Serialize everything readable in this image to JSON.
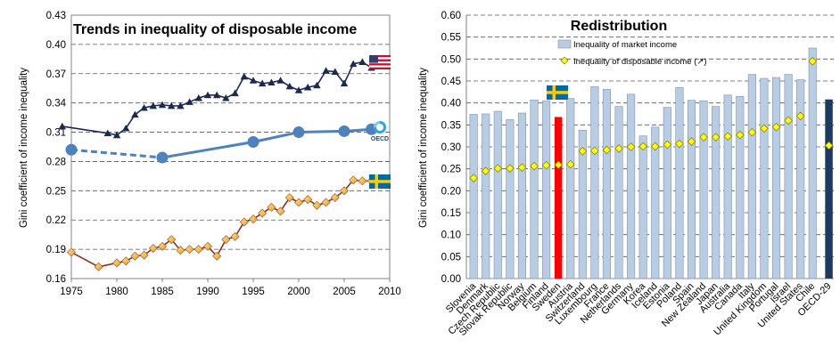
{
  "chart_data": [
    {
      "type": "line",
      "title": "Trends in inequality of disposable income",
      "ylabel": "Gini coefficient of income inequality",
      "xlabel": "",
      "xlim": [
        1975,
        2010
      ],
      "ylim": [
        0.16,
        0.43
      ],
      "grid": "horizontal dashed",
      "y_ticks": [
        "0.16",
        "0.19",
        "0.22",
        "0.25",
        "0.28",
        "0.31",
        "0.34",
        "0.37",
        "0.40",
        "0.43"
      ],
      "x_ticks": [
        "1975",
        "1980",
        "1985",
        "1990",
        "1995",
        "2000",
        "2005",
        "2010"
      ],
      "series": [
        {
          "flag": "United States",
          "color": "#1c2a4f",
          "marker": "triangle",
          "x": [
            1974,
            1979,
            1980,
            1981,
            1982,
            1983,
            1984,
            1985,
            1986,
            1987,
            1988,
            1989,
            1990,
            1991,
            1992,
            1993,
            1994,
            1995,
            1996,
            1997,
            1998,
            1999,
            2000,
            2001,
            2002,
            2003,
            2004,
            2005,
            2006,
            2007,
            2008
          ],
          "y": [
            0.316,
            0.309,
            0.307,
            0.314,
            0.328,
            0.335,
            0.337,
            0.338,
            0.337,
            0.337,
            0.341,
            0.345,
            0.348,
            0.348,
            0.345,
            0.35,
            0.367,
            0.363,
            0.36,
            0.361,
            0.363,
            0.357,
            0.353,
            0.356,
            0.358,
            0.373,
            0.372,
            0.36,
            0.38,
            0.382,
            0.376
          ]
        },
        {
          "flag": "OECD",
          "color": "#4f81bd",
          "marker": "circle",
          "x": [
            1975,
            1985,
            1995,
            2000,
            2005,
            2008
          ],
          "y": [
            0.292,
            0.284,
            0.3,
            0.31,
            0.311,
            0.313
          ],
          "dashed_segments": 1
        },
        {
          "flag": "Sweden",
          "color": "#8b2e1f",
          "marker": "diamond",
          "x": [
            1975,
            1978,
            1980,
            1981,
            1982,
            1983,
            1984,
            1985,
            1986,
            1987,
            1988,
            1989,
            1990,
            1991,
            1992,
            1993,
            1994,
            1995,
            1996,
            1997,
            1998,
            1999,
            2000,
            2001,
            2002,
            2003,
            2004,
            2005,
            2006,
            2007,
            2008
          ],
          "y": [
            0.187,
            0.172,
            0.176,
            0.178,
            0.183,
            0.184,
            0.191,
            0.193,
            0.2,
            0.189,
            0.19,
            0.19,
            0.193,
            0.183,
            0.2,
            0.203,
            0.218,
            0.221,
            0.227,
            0.233,
            0.229,
            0.243,
            0.238,
            0.241,
            0.235,
            0.238,
            0.243,
            0.25,
            0.261,
            0.26,
            0.26
          ]
        }
      ]
    },
    {
      "type": "bar",
      "title": "Redistribution",
      "ylabel": "Gini coefficient of income inequality",
      "xlabel": "",
      "ylim": [
        0,
        0.6
      ],
      "grid": "horizontal dashed",
      "legend_position": "top-left",
      "y_ticks": [
        "0.00",
        "0.05",
        "0.10",
        "0.15",
        "0.20",
        "0.25",
        "0.30",
        "0.35",
        "0.40",
        "0.45",
        "0.50",
        "0.55",
        "0.60"
      ],
      "categories": [
        "Slovenia",
        "Denmark",
        "Czech Republic",
        "Slovak Republic",
        "Norway",
        "Belgium",
        "Finland",
        "Sweden",
        "Austria",
        "Switzerland",
        "Luxembourg",
        "France",
        "Netherlands",
        "Germany",
        "Korea",
        "Iceland",
        "Estonia",
        "Poland",
        "Spain",
        "New Zealand",
        "Japan",
        "Australia",
        "Canada",
        "Italy",
        "United Kingdom",
        "Portugal",
        "Israel",
        "United States",
        "Chile",
        "OECD-29"
      ],
      "series": [
        {
          "name": "Inequality of market income",
          "color": "#b8cce4",
          "values": [
            0.374,
            0.375,
            0.381,
            0.362,
            0.377,
            0.407,
            0.405,
            0.368,
            0.41,
            0.338,
            0.437,
            0.431,
            0.392,
            0.42,
            0.325,
            0.345,
            0.39,
            0.435,
            0.406,
            0.405,
            0.392,
            0.418,
            0.415,
            0.465,
            0.456,
            0.458,
            0.465,
            0.453,
            0.525,
            0.408
          ]
        },
        {
          "name": "Inequality of disposable income (↗)",
          "color": "#ffff00",
          "values": [
            0.229,
            0.245,
            0.251,
            0.251,
            0.253,
            0.256,
            0.258,
            0.259,
            0.26,
            0.29,
            0.291,
            0.293,
            0.296,
            0.3,
            0.301,
            0.301,
            0.305,
            0.307,
            0.312,
            0.322,
            0.322,
            0.324,
            0.327,
            0.333,
            0.342,
            0.345,
            0.36,
            0.37,
            0.495,
            0.303
          ]
        }
      ],
      "highlight": {
        "Sweden": "#ff0000",
        "OECD-29": "#1f3a5f"
      }
    }
  ]
}
